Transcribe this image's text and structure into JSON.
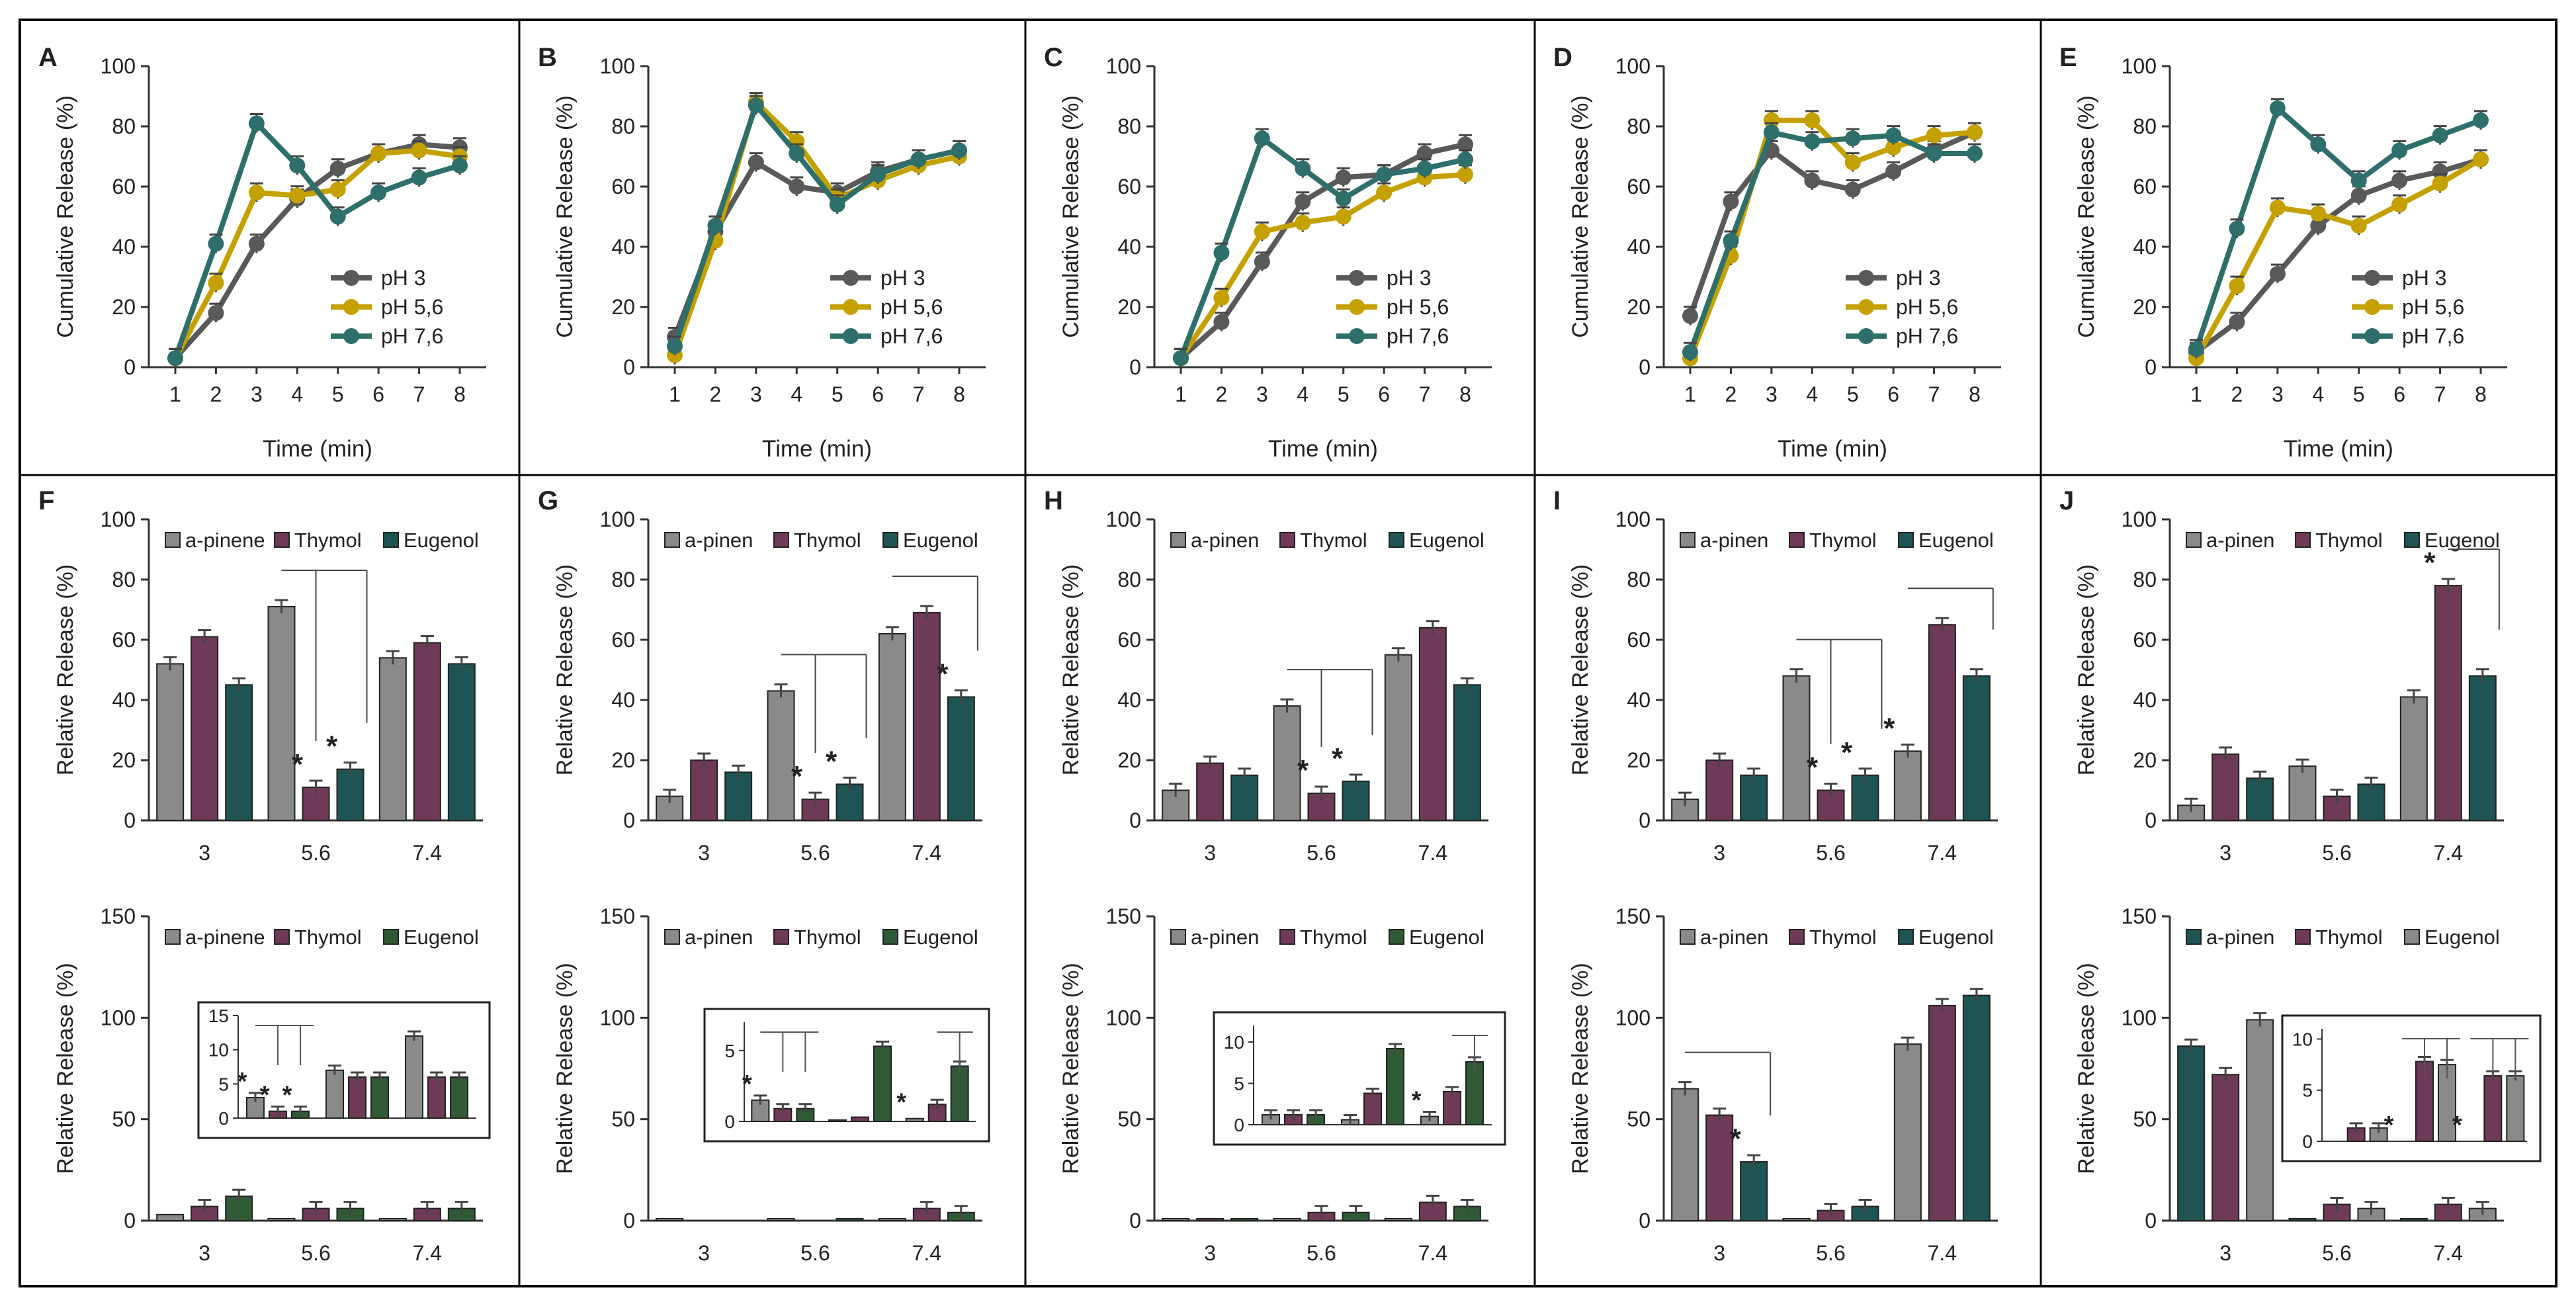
{
  "figure": {
    "id": "release-figure"
  },
  "colors": {
    "pH3": "#595959",
    "pH56": "#c5a100",
    "pH76": "#2f6f6b",
    "gray": "#8a8a8a",
    "purple": "#6e3a57",
    "teal": "#1f5454",
    "green": "#2f5a35"
  },
  "chart_data": [
    {
      "panel": "A",
      "type": "line",
      "xlabel": "Time (min)",
      "ylabel": "Cumulative Release (%)",
      "ylim": [
        0,
        100
      ],
      "yticks": [
        0,
        20,
        40,
        60,
        80,
        100
      ],
      "x": [
        1,
        2,
        3,
        4,
        5,
        6,
        7,
        8
      ],
      "legend": "center-right",
      "series": [
        {
          "name": "pH 3",
          "color": "pH3",
          "values": [
            3,
            18,
            41,
            56,
            66,
            71,
            74,
            73
          ]
        },
        {
          "name": "pH 5,6",
          "color": "pH56",
          "values": [
            3,
            28,
            58,
            57,
            59,
            71,
            72,
            70
          ]
        },
        {
          "name": "pH 7,6",
          "color": "pH76",
          "values": [
            3,
            41,
            81,
            67,
            50,
            58,
            63,
            67
          ]
        }
      ]
    },
    {
      "panel": "B",
      "type": "line",
      "xlabel": "Time (min)",
      "ylabel": "Cumulative Release (%)",
      "ylim": [
        0,
        100
      ],
      "yticks": [
        0,
        20,
        40,
        60,
        80,
        100
      ],
      "x": [
        1,
        2,
        3,
        4,
        5,
        6,
        7,
        8
      ],
      "legend": "center-right",
      "series": [
        {
          "name": "pH 3",
          "color": "pH3",
          "values": [
            10,
            45,
            68,
            60,
            58,
            65,
            69,
            72
          ]
        },
        {
          "name": "pH 5,6",
          "color": "pH56",
          "values": [
            4,
            42,
            88,
            75,
            56,
            62,
            67,
            70
          ]
        },
        {
          "name": "pH 7,6",
          "color": "pH76",
          "values": [
            7,
            47,
            87,
            71,
            54,
            64,
            69,
            72
          ]
        }
      ]
    },
    {
      "panel": "C",
      "type": "line",
      "xlabel": "Time (min)",
      "ylabel": "Cumulative Release (%)",
      "ylim": [
        0,
        100
      ],
      "yticks": [
        0,
        20,
        40,
        60,
        80,
        100
      ],
      "x": [
        1,
        2,
        3,
        4,
        5,
        6,
        7,
        8
      ],
      "legend": "center-right",
      "series": [
        {
          "name": "pH 3",
          "color": "pH3",
          "values": [
            3,
            15,
            35,
            55,
            63,
            64,
            71,
            74
          ]
        },
        {
          "name": "pH 5,6",
          "color": "pH56",
          "values": [
            3,
            23,
            45,
            48,
            50,
            58,
            63,
            64
          ]
        },
        {
          "name": "pH 7,6",
          "color": "pH76",
          "values": [
            3,
            38,
            76,
            66,
            56,
            64,
            66,
            69
          ]
        }
      ]
    },
    {
      "panel": "D",
      "type": "line",
      "xlabel": "Time (min)",
      "ylabel": "Cumulative Release (%)",
      "ylim": [
        0,
        100
      ],
      "yticks": [
        0,
        20,
        40,
        60,
        80,
        100
      ],
      "x": [
        1,
        2,
        3,
        4,
        5,
        6,
        7,
        8
      ],
      "legend": "center-right",
      "series": [
        {
          "name": "pH 3",
          "color": "pH3",
          "values": [
            17,
            55,
            72,
            62,
            59,
            65,
            72,
            78
          ]
        },
        {
          "name": "pH 5,6",
          "color": "pH56",
          "values": [
            3,
            37,
            82,
            82,
            68,
            73,
            77,
            78
          ]
        },
        {
          "name": "pH 7,6",
          "color": "pH76",
          "values": [
            5,
            42,
            78,
            75,
            76,
            77,
            71,
            71
          ]
        }
      ]
    },
    {
      "panel": "E",
      "type": "line",
      "xlabel": "Time (min)",
      "ylabel": "Cumulative Release (%)",
      "ylim": [
        0,
        100
      ],
      "yticks": [
        0,
        20,
        40,
        60,
        80,
        100
      ],
      "x": [
        1,
        2,
        3,
        4,
        5,
        6,
        7,
        8
      ],
      "legend": "center-right",
      "series": [
        {
          "name": "pH 3",
          "color": "pH3",
          "values": [
            5,
            15,
            31,
            47,
            57,
            62,
            65,
            69
          ]
        },
        {
          "name": "pH 5,6",
          "color": "pH56",
          "values": [
            3,
            27,
            53,
            51,
            47,
            54,
            61,
            69
          ]
        },
        {
          "name": "pH 7,6",
          "color": "pH76",
          "values": [
            6,
            46,
            86,
            74,
            62,
            72,
            77,
            82
          ]
        }
      ]
    },
    {
      "panel": "F",
      "type": "bar",
      "xlabel": "",
      "ylabel": "Relative Release (%)",
      "ylim": [
        0,
        100
      ],
      "yticks": [
        0,
        20,
        40,
        60,
        80,
        100
      ],
      "categories": [
        "3",
        "5.6",
        "7.4"
      ],
      "legend": "top",
      "series": [
        {
          "name": "a-pinene",
          "color": "gray",
          "values": [
            52,
            71,
            54
          ]
        },
        {
          "name": "Thymol",
          "color": "purple",
          "values": [
            61,
            11,
            59
          ]
        },
        {
          "name": "Eugenol",
          "color": "teal",
          "values": [
            45,
            17,
            52
          ]
        }
      ],
      "sig": [
        {
          "ci": 1,
          "si": 1
        },
        {
          "ci": 1,
          "si": 2
        }
      ],
      "brackets": [
        {
          "ci": 1,
          "from": 0,
          "to": [
            1,
            2
          ]
        }
      ]
    },
    {
      "panel": "G",
      "type": "bar",
      "xlabel": "",
      "ylabel": "Relative Release (%)",
      "ylim": [
        0,
        100
      ],
      "yticks": [
        0,
        20,
        40,
        60,
        80,
        100
      ],
      "categories": [
        "3",
        "5.6",
        "7.4"
      ],
      "legend": "top",
      "series": [
        {
          "name": "a-pinen",
          "color": "gray",
          "values": [
            8,
            43,
            62
          ]
        },
        {
          "name": "Thymol",
          "color": "purple",
          "values": [
            20,
            7,
            69
          ]
        },
        {
          "name": "Eugenol",
          "color": "teal",
          "values": [
            16,
            12,
            41
          ]
        }
      ],
      "sig": [
        {
          "ci": 1,
          "si": 1
        },
        {
          "ci": 1,
          "si": 2
        },
        {
          "ci": 2,
          "si": 2
        }
      ],
      "brackets": [
        {
          "ci": 1,
          "from": 0,
          "to": [
            1,
            2
          ]
        },
        {
          "ci": 2,
          "from": 0,
          "to": [
            2
          ]
        }
      ]
    },
    {
      "panel": "H",
      "type": "bar",
      "xlabel": "",
      "ylabel": "Relative Release (%)",
      "ylim": [
        0,
        100
      ],
      "yticks": [
        0,
        20,
        40,
        60,
        80,
        100
      ],
      "categories": [
        "3",
        "5.6",
        "7.4"
      ],
      "legend": "top",
      "series": [
        {
          "name": "a-pinen",
          "color": "gray",
          "values": [
            10,
            38,
            55
          ]
        },
        {
          "name": "Thymol",
          "color": "purple",
          "values": [
            19,
            9,
            64
          ]
        },
        {
          "name": "Eugenol",
          "color": "teal",
          "values": [
            15,
            13,
            45
          ]
        }
      ],
      "sig": [
        {
          "ci": 1,
          "si": 1
        },
        {
          "ci": 1,
          "si": 2
        }
      ],
      "brackets": [
        {
          "ci": 1,
          "from": 0,
          "to": [
            1,
            2
          ]
        }
      ]
    },
    {
      "panel": "I",
      "type": "bar",
      "xlabel": "",
      "ylabel": "Relative Release (%)",
      "ylim": [
        0,
        100
      ],
      "yticks": [
        0,
        20,
        40,
        60,
        80,
        100
      ],
      "categories": [
        "3",
        "5.6",
        "7.4"
      ],
      "legend": "top",
      "series": [
        {
          "name": "a-pinen",
          "color": "gray",
          "values": [
            7,
            48,
            23
          ]
        },
        {
          "name": "Thymol",
          "color": "purple",
          "values": [
            20,
            10,
            65
          ]
        },
        {
          "name": "Eugenol",
          "color": "teal",
          "values": [
            15,
            15,
            48
          ]
        }
      ],
      "sig": [
        {
          "ci": 1,
          "si": 1
        },
        {
          "ci": 1,
          "si": 2
        },
        {
          "ci": 2,
          "si": 0
        }
      ],
      "brackets": [
        {
          "ci": 1,
          "from": 0,
          "to": [
            1,
            2
          ]
        },
        {
          "ci": 2,
          "from": 0,
          "to": [
            2
          ]
        }
      ]
    },
    {
      "panel": "J",
      "type": "bar",
      "xlabel": "",
      "ylabel": "Relative Release (%)",
      "ylim": [
        0,
        100
      ],
      "yticks": [
        0,
        20,
        40,
        60,
        80,
        100
      ],
      "categories": [
        "3",
        "5.6",
        "7.4"
      ],
      "legend": "top",
      "series": [
        {
          "name": "a-pinen",
          "color": "gray",
          "values": [
            5,
            18,
            41
          ]
        },
        {
          "name": "Thymol",
          "color": "purple",
          "values": [
            22,
            8,
            78
          ]
        },
        {
          "name": "Eugenol",
          "color": "teal",
          "values": [
            14,
            12,
            48
          ]
        }
      ],
      "sig": [
        {
          "ci": 2,
          "si": 1
        }
      ],
      "brackets": [
        {
          "ci": 2,
          "from": 1,
          "to": [
            2
          ]
        }
      ]
    },
    {
      "panel": "",
      "type": "bar",
      "xlabel": "",
      "ylabel": "Relative Release (%)",
      "ylim": [
        0,
        150
      ],
      "yticks": [
        0,
        50,
        100,
        150
      ],
      "categories": [
        "3",
        "5.6",
        "7.4"
      ],
      "legend": "top",
      "series": [
        {
          "name": "a-pinene",
          "color": "gray",
          "values": [
            3,
            1,
            1
          ]
        },
        {
          "name": "Thymol",
          "color": "purple",
          "values": [
            7,
            6,
            6
          ]
        },
        {
          "name": "Eugenol",
          "color": "green",
          "values": [
            12,
            6,
            6
          ]
        }
      ],
      "inset": {
        "ylim": [
          0,
          15
        ],
        "yticks": [
          0,
          5,
          10,
          15
        ],
        "values": [
          [
            3,
            7,
            12
          ],
          [
            1,
            6,
            6
          ],
          [
            1,
            6,
            6
          ]
        ],
        "sig": [
          {
            "ci": 0,
            "si": 0
          },
          {
            "ci": 0,
            "si": 1
          },
          {
            "ci": 0,
            "si": 2
          }
        ],
        "brackets": [
          {
            "ci": 0,
            "from": 0,
            "to": [
              1,
              2
            ]
          }
        ]
      }
    },
    {
      "panel": "",
      "type": "bar",
      "xlabel": "",
      "ylabel": "Relative Release (%)",
      "ylim": [
        0,
        150
      ],
      "yticks": [
        0,
        50,
        100,
        150
      ],
      "categories": [
        "3",
        "5.6",
        "7.4"
      ],
      "legend": "top",
      "series": [
        {
          "name": "a-pinen",
          "color": "gray",
          "values": [
            1,
            1,
            1
          ]
        },
        {
          "name": "Thymol",
          "color": "purple",
          "values": [
            0,
            0,
            6
          ]
        },
        {
          "name": "Eugenol",
          "color": "green",
          "values": [
            0,
            1,
            4
          ]
        }
      ],
      "inset": {
        "ylim": [
          0,
          7
        ],
        "yticks": [
          0,
          5
        ],
        "values": [
          [
            1.5,
            0.1,
            0.2
          ],
          [
            0.9,
            0.3,
            1.2
          ],
          [
            0.9,
            5.3,
            3.9
          ]
        ],
        "sig": [
          {
            "ci": 0,
            "si": 0
          },
          {
            "ci": 2,
            "si": 0
          }
        ],
        "brackets": [
          {
            "ci": 0,
            "from": 0,
            "to": [
              1,
              2
            ]
          },
          {
            "ci": 2,
            "from": 1,
            "to": [
              2
            ]
          }
        ]
      }
    },
    {
      "panel": "",
      "type": "bar",
      "xlabel": "",
      "ylabel": "Relative Release (%)",
      "ylim": [
        0,
        150
      ],
      "yticks": [
        0,
        50,
        100,
        150
      ],
      "categories": [
        "3",
        "5.6",
        "7.4"
      ],
      "legend": "top",
      "series": [
        {
          "name": "a-pinen",
          "color": "gray",
          "values": [
            1,
            1,
            1
          ]
        },
        {
          "name": "Thymol",
          "color": "purple",
          "values": [
            1,
            4,
            9
          ]
        },
        {
          "name": "Eugenol",
          "color": "green",
          "values": [
            1,
            4,
            7
          ]
        }
      ],
      "inset": {
        "ylim": [
          0,
          12
        ],
        "yticks": [
          0,
          5,
          10
        ],
        "values": [
          [
            1.2,
            0.6,
            1.0
          ],
          [
            1.2,
            3.8,
            4.0
          ],
          [
            1.2,
            9.2,
            7.6
          ]
        ],
        "sig": [
          {
            "ci": 2,
            "si": 0
          }
        ],
        "brackets": [
          {
            "ci": 2,
            "from": 1,
            "to": [
              2
            ]
          }
        ]
      }
    },
    {
      "panel": "",
      "type": "bar",
      "xlabel": "",
      "ylabel": "Relative Release (%)",
      "ylim": [
        0,
        150
      ],
      "yticks": [
        0,
        50,
        100,
        150
      ],
      "categories": [
        "3",
        "5.6",
        "7.4"
      ],
      "legend": "top",
      "series": [
        {
          "name": "a-pinen",
          "color": "gray",
          "values": [
            65,
            1,
            87
          ]
        },
        {
          "name": "Thymol",
          "color": "purple",
          "values": [
            52,
            5,
            106
          ]
        },
        {
          "name": "Eugenol",
          "color": "teal",
          "values": [
            29,
            7,
            111
          ]
        }
      ],
      "sig": [
        {
          "ci": 0,
          "si": 2
        }
      ],
      "brackets": [
        {
          "ci": 0,
          "from": 0,
          "to": [
            2
          ]
        }
      ]
    },
    {
      "panel": "",
      "type": "bar",
      "xlabel": "",
      "ylabel": "Relative Release (%)",
      "ylim": [
        0,
        150
      ],
      "yticks": [
        0,
        50,
        100,
        150
      ],
      "categories": [
        "3",
        "5.6",
        "7.4"
      ],
      "legend": "top",
      "series": [
        {
          "name": "a-pinen",
          "color": "teal",
          "values": [
            86,
            1,
            1
          ]
        },
        {
          "name": "Thymol",
          "color": "purple",
          "values": [
            72,
            8,
            8
          ]
        },
        {
          "name": "Eugenol",
          "color": "gray",
          "values": [
            99,
            6,
            6
          ]
        }
      ],
      "inset": {
        "ylim": [
          0,
          11
        ],
        "yticks": [
          0,
          5,
          10
        ],
        "values": [
          [
            0,
            0,
            0
          ],
          [
            1.3,
            7.8,
            6.4
          ],
          [
            1.3,
            7.5,
            6.4
          ]
        ],
        "sig": [
          {
            "ci": 1,
            "si": 0
          },
          {
            "ci": 2,
            "si": 0
          }
        ],
        "brackets": [
          {
            "ci": 1,
            "from": 0,
            "to": [
              1,
              2
            ]
          },
          {
            "ci": 2,
            "from": 0,
            "to": [
              1,
              2
            ]
          }
        ]
      }
    }
  ]
}
